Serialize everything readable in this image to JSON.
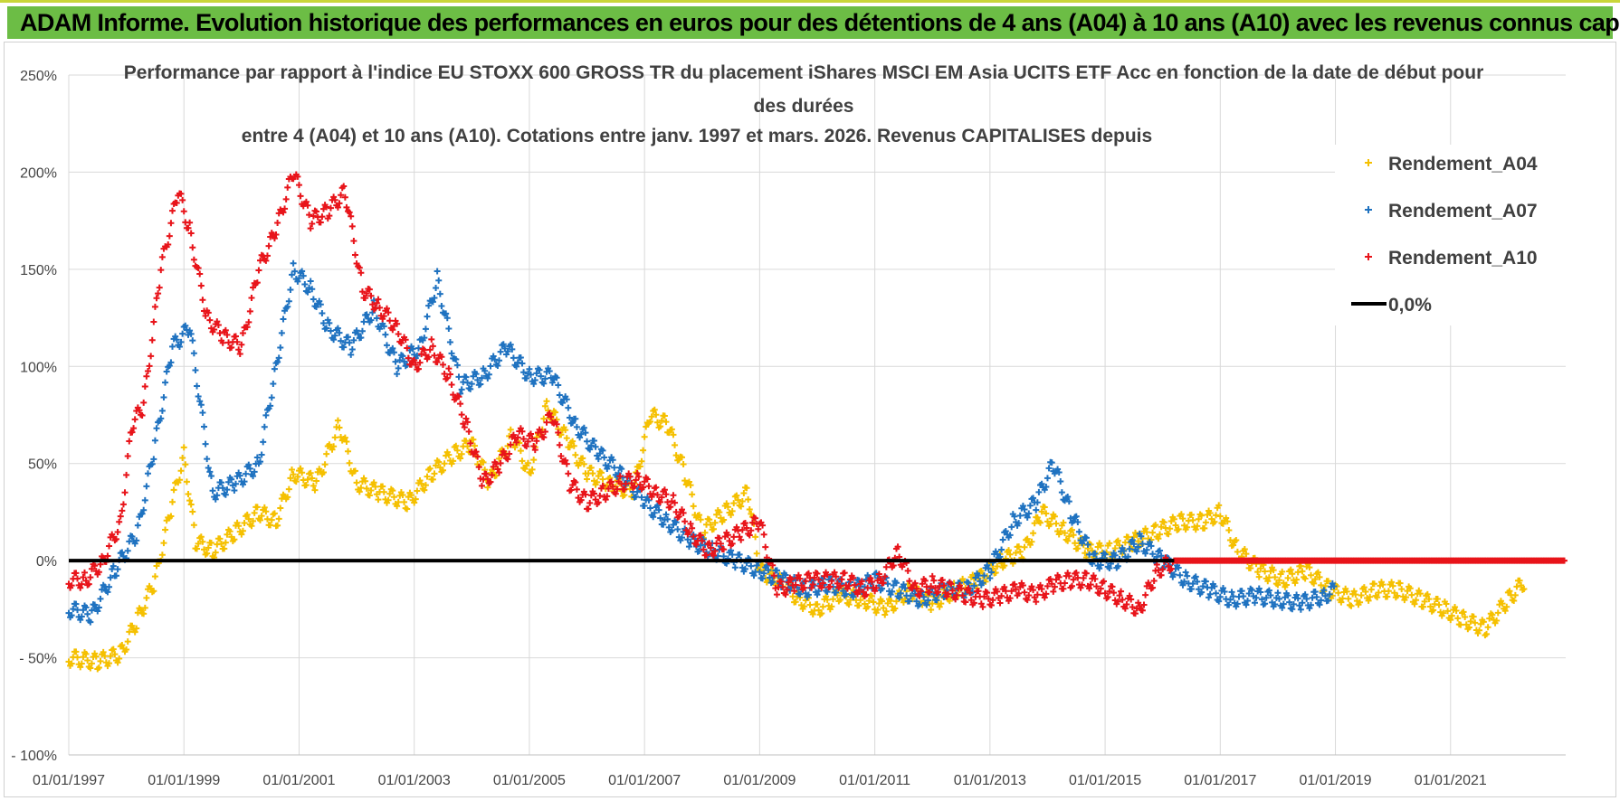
{
  "banner": {
    "title": "ADAM Informe. Evolution historique des performances en euros pour des détentions de 4 ans (A04) à 10 ans (A10) avec les revenus connus capitalisés"
  },
  "chart_data": {
    "type": "scatter",
    "title_lines": [
      "Performance par rapport à l'indice EU STOXX 600 GROSS TR  du placement iShares MSCI EM Asia UCITS ETF Acc en fonction de la date de début pour",
      "des durées",
      "entre 4 (A04) et 10 ans (A10). Cotations entre janv. 1997 et mars. 2026. Revenus CAPITALISES depuis"
    ],
    "x_range": [
      1997.0,
      2023.0
    ],
    "y_range": [
      -100,
      250
    ],
    "y_ticks": [
      -100,
      -50,
      0,
      50,
      100,
      150,
      200,
      250
    ],
    "y_tick_labels": [
      "- 100%",
      "- 50%",
      "0%",
      "50%",
      "100%",
      "150%",
      "200%",
      "250%"
    ],
    "x_tick_years": [
      1997,
      1999,
      2001,
      2003,
      2005,
      2007,
      2009,
      2011,
      2013,
      2015,
      2017,
      2019,
      2021
    ],
    "x_tick_labels": [
      "01/01/1997",
      "01/01/1999",
      "01/01/2001",
      "01/01/2003",
      "01/01/2005",
      "01/01/2007",
      "01/01/2009",
      "01/01/2011",
      "01/01/2013",
      "01/01/2015",
      "01/01/2017",
      "01/01/2019",
      "01/01/2021"
    ],
    "legend": [
      {
        "label": "Rendement_A04",
        "color": "#f5c000",
        "marker": "+"
      },
      {
        "label": "Rendement_A07",
        "color": "#1f72c0",
        "marker": "+"
      },
      {
        "label": "Rendement_A10",
        "color": "#e8141a",
        "marker": "+"
      },
      {
        "label": "0,0%",
        "color": "#000000",
        "marker": "line"
      }
    ],
    "series": [
      {
        "name": "Rendement_A04",
        "color": "#f5c000",
        "x": [
          1997.0,
          1997.5,
          1997.9,
          1998.2,
          1998.5,
          1998.8,
          1999.0,
          1999.2,
          1999.5,
          1999.9,
          2000.3,
          2000.6,
          2000.9,
          2001.3,
          2001.7,
          2002.0,
          2002.4,
          2002.9,
          2003.3,
          2003.7,
          2004.0,
          2004.3,
          2004.7,
          2005.0,
          2005.3,
          2005.7,
          2006.0,
          2006.4,
          2006.8,
          2007.1,
          2007.4,
          2007.7,
          2008.0,
          2008.4,
          2008.8,
          2009.0,
          2009.3,
          2009.7,
          2010.0,
          2010.4,
          2010.8,
          2011.2,
          2011.6,
          2012.0,
          2012.4,
          2012.8,
          2013.2,
          2013.6,
          2013.9,
          2014.3,
          2014.7,
          2015.1,
          2015.5,
          2015.9,
          2016.3,
          2016.7,
          2017.0,
          2017.3,
          2017.7,
          2018.1,
          2018.5,
          2018.9,
          2019.3,
          2019.7,
          2020.1,
          2020.5,
          2020.9,
          2021.2,
          2021.6,
          2022.0,
          2022.3
        ],
        "y": [
          -50,
          -52,
          -48,
          -30,
          -10,
          30,
          55,
          10,
          5,
          15,
          25,
          20,
          45,
          40,
          70,
          40,
          35,
          30,
          45,
          55,
          60,
          40,
          65,
          45,
          80,
          60,
          45,
          40,
          35,
          75,
          70,
          45,
          15,
          25,
          35,
          -5,
          -10,
          -20,
          -25,
          -18,
          -20,
          -25,
          -15,
          -22,
          -15,
          -10,
          0,
          5,
          25,
          15,
          5,
          5,
          10,
          15,
          20,
          20,
          25,
          5,
          -5,
          -10,
          -5,
          -15,
          -20,
          -15,
          -15,
          -20,
          -25,
          -30,
          -35,
          -20,
          -10
        ]
      },
      {
        "name": "Rendement_A07",
        "color": "#1f72c0",
        "x": [
          1997.0,
          1997.4,
          1997.8,
          1998.2,
          1998.5,
          1998.8,
          1999.1,
          1999.5,
          1999.9,
          2000.3,
          2000.6,
          2000.9,
          2001.2,
          2001.5,
          2001.9,
          2002.3,
          2002.7,
          2003.1,
          2003.4,
          2003.8,
          2004.2,
          2004.6,
          2005.0,
          2005.4,
          2005.8,
          2006.2,
          2006.6,
          2007.0,
          2007.4,
          2007.8,
          2008.2,
          2008.6,
          2009.0,
          2009.4,
          2009.8,
          2010.2,
          2010.6,
          2011.0,
          2011.4,
          2011.8,
          2012.2,
          2012.6,
          2013.0,
          2013.4,
          2013.8,
          2014.1,
          2014.4,
          2014.8,
          2015.2,
          2015.6,
          2016.0,
          2016.4,
          2016.8,
          2017.2,
          2017.6,
          2018.0,
          2018.4,
          2018.8,
          2019.0
        ],
        "y": [
          -25,
          -28,
          -5,
          15,
          60,
          110,
          120,
          35,
          40,
          50,
          100,
          150,
          140,
          120,
          110,
          130,
          100,
          110,
          145,
          90,
          95,
          110,
          95,
          95,
          70,
          55,
          45,
          30,
          20,
          10,
          5,
          0,
          -5,
          -10,
          -15,
          -12,
          -15,
          -10,
          -15,
          -20,
          -15,
          -15,
          -5,
          20,
          30,
          50,
          25,
          0,
          0,
          10,
          0,
          -10,
          -15,
          -20,
          -18,
          -20,
          -22,
          -18,
          -15
        ]
      },
      {
        "name": "Rendement_A10",
        "color": "#e8141a",
        "x": [
          1997.0,
          1997.3,
          1997.6,
          1997.9,
          1998.1,
          1998.3,
          1998.6,
          1998.9,
          1999.1,
          1999.4,
          1999.7,
          2000.0,
          2000.3,
          2000.6,
          2000.9,
          2001.2,
          2001.5,
          2001.8,
          2002.1,
          2002.4,
          2002.7,
          2003.0,
          2003.3,
          2003.6,
          2003.9,
          2004.2,
          2004.5,
          2004.8,
          2005.1,
          2005.4,
          2005.7,
          2006.0,
          2006.3,
          2006.6,
          2006.9,
          2007.2,
          2007.5,
          2007.8,
          2008.1,
          2008.4,
          2008.7,
          2009.0,
          2009.3,
          2009.6,
          2009.9,
          2010.2,
          2010.5,
          2010.8,
          2011.1,
          2011.4,
          2011.7,
          2012.0,
          2012.3,
          2012.6,
          2012.9,
          2013.2,
          2013.5,
          2013.8,
          2014.1,
          2014.4,
          2014.7,
          2015.0,
          2015.3,
          2015.6,
          2015.9,
          2016.2
        ],
        "y": [
          -10,
          -10,
          0,
          20,
          70,
          80,
          150,
          190,
          170,
          125,
          115,
          110,
          150,
          170,
          200,
          175,
          180,
          190,
          140,
          130,
          120,
          100,
          110,
          95,
          70,
          40,
          50,
          65,
          60,
          75,
          40,
          30,
          35,
          40,
          42,
          35,
          30,
          15,
          5,
          10,
          15,
          20,
          -15,
          -12,
          -10,
          -10,
          -10,
          -15,
          -10,
          5,
          -15,
          -12,
          -15,
          -18,
          -20,
          -18,
          -15,
          -18,
          -12,
          -10,
          -10,
          -15,
          -20,
          -25,
          -5,
          0
        ]
      }
    ]
  }
}
